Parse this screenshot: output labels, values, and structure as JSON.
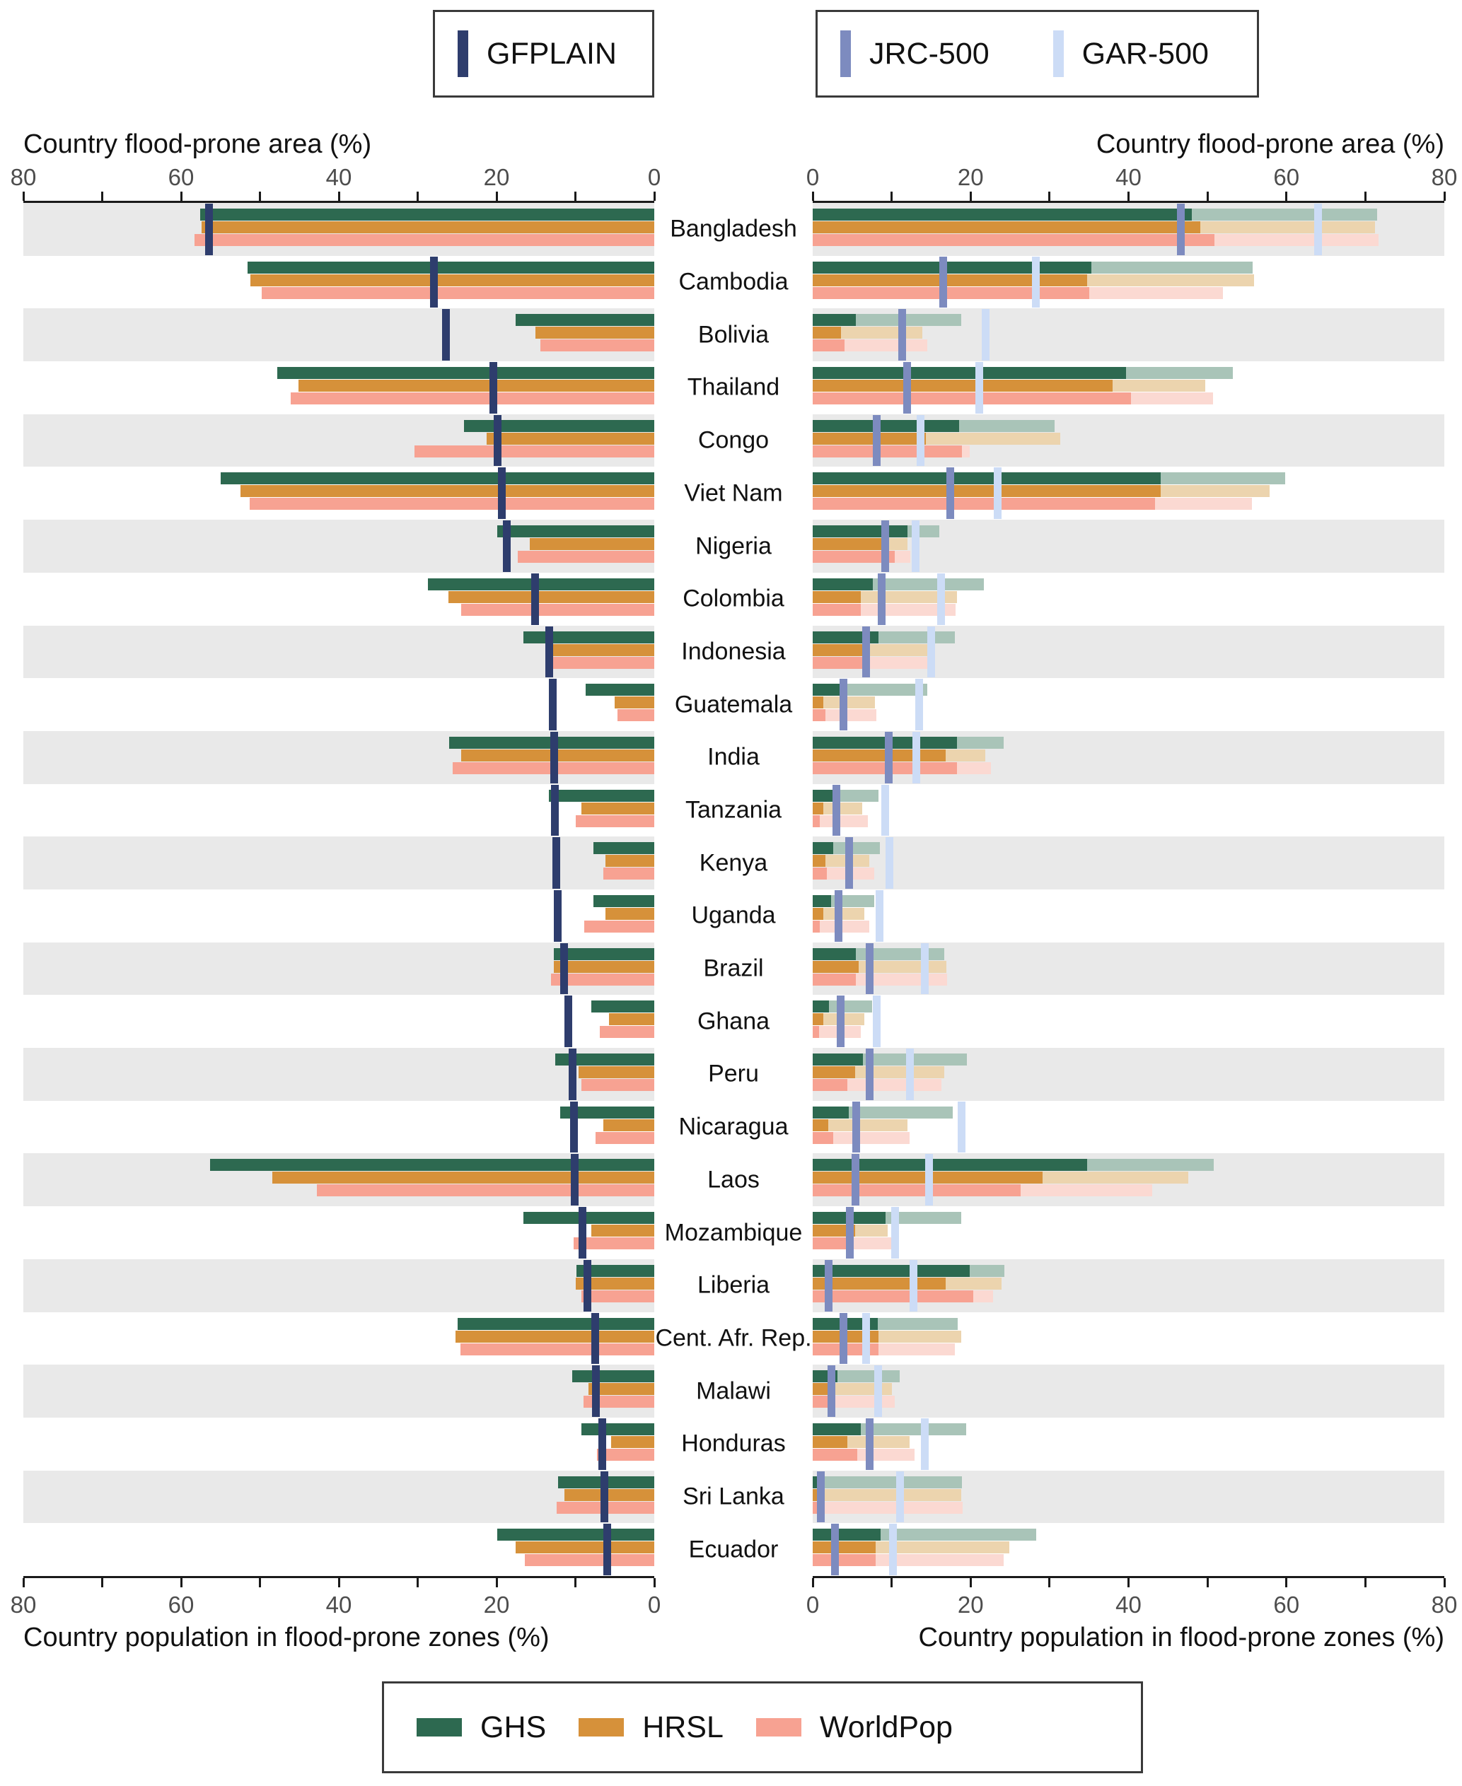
{
  "legend_top": {
    "gfplain_label": "GFPLAIN",
    "jrc_label": "JRC-500",
    "gar_label": "GAR-500"
  },
  "legend_bottom": {
    "ghs_label": "GHS",
    "hrsl_label": "HRSL",
    "worldpop_label": "WorldPop"
  },
  "axes": {
    "top_title_left": "Country flood-prone area (%)",
    "top_title_right": "Country flood-prone area (%)",
    "bottom_title_left": "Country population in flood-prone zones (%)",
    "bottom_title_right": "Country population in flood-prone zones (%)",
    "min": 0,
    "max": 80,
    "major_step": 20,
    "minor_step": 10,
    "left_tick_labels": [
      "80",
      "60",
      "40",
      "20",
      "0"
    ],
    "right_tick_labels": [
      "0",
      "20",
      "40",
      "60",
      "80"
    ]
  },
  "colors": {
    "gfplain": "#2e3d6d",
    "jrc500": "#7d8bbf",
    "gar500": "#ccdcf6",
    "ghs": "#2d6950",
    "ghs_faded": "#a9c4b8",
    "hrsl": "#d6913a",
    "hrsl_faded": "#ecd4ae",
    "worldpop": "#f7a292",
    "worldpop_faded": "#fbd9d2",
    "stripe": "#e9e9e9",
    "axis_text": "#4d4d4d"
  },
  "chart_data": {
    "type": "bar",
    "orientation": "horizontal-mirrored",
    "left_panel": {
      "top_axis_label": "Country flood-prone area (%)",
      "bottom_axis_label": "Country population in flood-prone zones (%)",
      "axis_range": [
        0,
        80
      ],
      "axis_reversed": true,
      "tick_marker": "GFPLAIN",
      "bar_series": [
        "GHS",
        "HRSL",
        "WorldPop"
      ],
      "note": "bars = pop_gfplain, vertical tick = gfplain_area"
    },
    "right_panel": {
      "top_axis_label": "Country flood-prone area (%)",
      "bottom_axis_label": "Country population in flood-prone zones (%)",
      "axis_range": [
        0,
        80
      ],
      "axis_reversed": false,
      "tick_markers": [
        "JRC-500",
        "GAR-500"
      ],
      "bar_series": [
        "GHS",
        "HRSL",
        "WorldPop"
      ],
      "note": "solid bars = pop_jrc, faded extensions reach pop_gar; ticks = jrc_area and gar_area"
    },
    "rows": [
      {
        "country": "Bangladesh",
        "gfplain_area": 56.5,
        "pop_gfplain": {
          "ghs": 57.6,
          "hrsl": 57.4,
          "worldpop": 58.3
        },
        "jrc_area": 46.6,
        "gar_area": 64.0,
        "pop_jrc": {
          "ghs": 48.0,
          "hrsl": 49.1,
          "worldpop": 50.9
        },
        "pop_gar": {
          "ghs": 71.5,
          "hrsl": 71.2,
          "worldpop": 71.7
        }
      },
      {
        "country": "Cambodia",
        "gfplain_area": 27.9,
        "pop_gfplain": {
          "ghs": 51.6,
          "hrsl": 51.2,
          "worldpop": 49.8
        },
        "jrc_area": 16.5,
        "gar_area": 28.3,
        "pop_jrc": {
          "ghs": 35.3,
          "hrsl": 34.8,
          "worldpop": 35.0
        },
        "pop_gar": {
          "ghs": 55.7,
          "hrsl": 55.9,
          "worldpop": 52.0
        }
      },
      {
        "country": "Bolivia",
        "gfplain_area": 26.4,
        "pop_gfplain": {
          "ghs": 17.6,
          "hrsl": 15.1,
          "worldpop": 14.4
        },
        "jrc_area": 11.3,
        "gar_area": 21.9,
        "pop_jrc": {
          "ghs": 5.5,
          "hrsl": 3.6,
          "worldpop": 4.0
        },
        "pop_gar": {
          "ghs": 18.8,
          "hrsl": 13.9,
          "worldpop": 14.5
        }
      },
      {
        "country": "Thailand",
        "gfplain_area": 20.4,
        "pop_gfplain": {
          "ghs": 47.8,
          "hrsl": 45.1,
          "worldpop": 46.1
        },
        "jrc_area": 12.0,
        "gar_area": 21.1,
        "pop_jrc": {
          "ghs": 39.7,
          "hrsl": 38.0,
          "worldpop": 40.3
        },
        "pop_gar": {
          "ghs": 53.2,
          "hrsl": 49.7,
          "worldpop": 50.7
        }
      },
      {
        "country": "Congo",
        "gfplain_area": 19.9,
        "pop_gfplain": {
          "ghs": 24.1,
          "hrsl": 21.3,
          "worldpop": 30.4
        },
        "jrc_area": 8.1,
        "gar_area": 13.7,
        "pop_jrc": {
          "ghs": 18.5,
          "hrsl": 14.3,
          "worldpop": 18.9
        },
        "pop_gar": {
          "ghs": 30.6,
          "hrsl": 31.4,
          "worldpop": 19.9
        }
      },
      {
        "country": "Viet Nam",
        "gfplain_area": 19.3,
        "pop_gfplain": {
          "ghs": 55.0,
          "hrsl": 52.5,
          "worldpop": 51.3
        },
        "jrc_area": 17.4,
        "gar_area": 23.4,
        "pop_jrc": {
          "ghs": 44.1,
          "hrsl": 44.1,
          "worldpop": 43.4
        },
        "pop_gar": {
          "ghs": 59.8,
          "hrsl": 57.9,
          "worldpop": 55.6
        }
      },
      {
        "country": "Nigeria",
        "gfplain_area": 18.7,
        "pop_gfplain": {
          "ghs": 19.9,
          "hrsl": 15.8,
          "worldpop": 17.3
        },
        "jrc_area": 9.2,
        "gar_area": 13.0,
        "pop_jrc": {
          "ghs": 12.0,
          "hrsl": 9.0,
          "worldpop": 10.4
        },
        "pop_gar": {
          "ghs": 16.0,
          "hrsl": 12.0,
          "worldpop": 12.4
        }
      },
      {
        "country": "Colombia",
        "gfplain_area": 15.1,
        "pop_gfplain": {
          "ghs": 28.7,
          "hrsl": 26.1,
          "worldpop": 24.5
        },
        "jrc_area": 8.7,
        "gar_area": 16.3,
        "pop_jrc": {
          "ghs": 7.6,
          "hrsl": 6.1,
          "worldpop": 6.1
        },
        "pop_gar": {
          "ghs": 21.7,
          "hrsl": 18.3,
          "worldpop": 18.1
        }
      },
      {
        "country": "Indonesia",
        "gfplain_area": 13.3,
        "pop_gfplain": {
          "ghs": 16.6,
          "hrsl": 13.1,
          "worldpop": 12.9
        },
        "jrc_area": 6.8,
        "gar_area": 15.0,
        "pop_jrc": {
          "ghs": 8.3,
          "hrsl": 7.3,
          "worldpop": 7.3
        },
        "pop_gar": {
          "ghs": 18.0,
          "hrsl": 14.7,
          "worldpop": 14.7
        }
      },
      {
        "country": "Guatemala",
        "gfplain_area": 12.9,
        "pop_gfplain": {
          "ghs": 8.7,
          "hrsl": 5.0,
          "worldpop": 4.7
        },
        "jrc_area": 3.9,
        "gar_area": 13.5,
        "pop_jrc": {
          "ghs": 4.0,
          "hrsl": 1.3,
          "worldpop": 1.6
        },
        "pop_gar": {
          "ghs": 14.5,
          "hrsl": 7.9,
          "worldpop": 8.1
        }
      },
      {
        "country": "India",
        "gfplain_area": 12.7,
        "pop_gfplain": {
          "ghs": 26.0,
          "hrsl": 24.5,
          "worldpop": 25.6
        },
        "jrc_area": 9.6,
        "gar_area": 13.1,
        "pop_jrc": {
          "ghs": 18.3,
          "hrsl": 16.8,
          "worldpop": 18.3
        },
        "pop_gar": {
          "ghs": 24.2,
          "hrsl": 21.9,
          "worldpop": 22.6
        }
      },
      {
        "country": "Tanzania",
        "gfplain_area": 12.6,
        "pop_gfplain": {
          "ghs": 13.4,
          "hrsl": 9.2,
          "worldpop": 10.0
        },
        "jrc_area": 3.0,
        "gar_area": 9.2,
        "pop_jrc": {
          "ghs": 3.3,
          "hrsl": 1.3,
          "worldpop": 0.9
        },
        "pop_gar": {
          "ghs": 8.3,
          "hrsl": 6.3,
          "worldpop": 7.0
        }
      },
      {
        "country": "Kenya",
        "gfplain_area": 12.4,
        "pop_gfplain": {
          "ghs": 7.7,
          "hrsl": 6.2,
          "worldpop": 6.5
        },
        "jrc_area": 4.6,
        "gar_area": 9.7,
        "pop_jrc": {
          "ghs": 2.6,
          "hrsl": 1.6,
          "worldpop": 1.8
        },
        "pop_gar": {
          "ghs": 8.5,
          "hrsl": 7.2,
          "worldpop": 7.8
        }
      },
      {
        "country": "Uganda",
        "gfplain_area": 12.2,
        "pop_gfplain": {
          "ghs": 7.7,
          "hrsl": 6.2,
          "worldpop": 8.9
        },
        "jrc_area": 3.3,
        "gar_area": 8.5,
        "pop_jrc": {
          "ghs": 2.3,
          "hrsl": 1.3,
          "worldpop": 0.9
        },
        "pop_gar": {
          "ghs": 7.8,
          "hrsl": 6.5,
          "worldpop": 7.2
        }
      },
      {
        "country": "Brazil",
        "gfplain_area": 11.4,
        "pop_gfplain": {
          "ghs": 12.7,
          "hrsl": 12.7,
          "worldpop": 13.1
        },
        "jrc_area": 7.2,
        "gar_area": 14.2,
        "pop_jrc": {
          "ghs": 5.5,
          "hrsl": 5.8,
          "worldpop": 5.5
        },
        "pop_gar": {
          "ghs": 16.7,
          "hrsl": 16.9,
          "worldpop": 17.0
        }
      },
      {
        "country": "Ghana",
        "gfplain_area": 10.9,
        "pop_gfplain": {
          "ghs": 8.0,
          "hrsl": 5.7,
          "worldpop": 6.9
        },
        "jrc_area": 3.5,
        "gar_area": 8.1,
        "pop_jrc": {
          "ghs": 2.1,
          "hrsl": 1.3,
          "worldpop": 0.8
        },
        "pop_gar": {
          "ghs": 7.5,
          "hrsl": 6.5,
          "worldpop": 6.1
        }
      },
      {
        "country": "Peru",
        "gfplain_area": 10.4,
        "pop_gfplain": {
          "ghs": 12.6,
          "hrsl": 9.6,
          "worldpop": 9.2
        },
        "jrc_area": 7.2,
        "gar_area": 12.3,
        "pop_jrc": {
          "ghs": 6.4,
          "hrsl": 5.4,
          "worldpop": 4.4
        },
        "pop_gar": {
          "ghs": 19.5,
          "hrsl": 16.7,
          "worldpop": 16.3
        }
      },
      {
        "country": "Nicaragua",
        "gfplain_area": 10.2,
        "pop_gfplain": {
          "ghs": 11.9,
          "hrsl": 6.5,
          "worldpop": 7.4
        },
        "jrc_area": 5.5,
        "gar_area": 18.9,
        "pop_jrc": {
          "ghs": 4.6,
          "hrsl": 2.0,
          "worldpop": 2.6
        },
        "pop_gar": {
          "ghs": 17.7,
          "hrsl": 12.0,
          "worldpop": 12.3
        }
      },
      {
        "country": "Laos",
        "gfplain_area": 10.1,
        "pop_gfplain": {
          "ghs": 56.3,
          "hrsl": 48.4,
          "worldpop": 42.8
        },
        "jrc_area": 5.4,
        "gar_area": 14.7,
        "pop_jrc": {
          "ghs": 34.8,
          "hrsl": 29.1,
          "worldpop": 26.3
        },
        "pop_gar": {
          "ghs": 50.8,
          "hrsl": 47.6,
          "worldpop": 43.0
        }
      },
      {
        "country": "Mozambique",
        "gfplain_area": 9.1,
        "pop_gfplain": {
          "ghs": 16.6,
          "hrsl": 8.0,
          "worldpop": 10.2
        },
        "jrc_area": 4.7,
        "gar_area": 10.4,
        "pop_jrc": {
          "ghs": 9.2,
          "hrsl": 5.4,
          "worldpop": 5.0
        },
        "pop_gar": {
          "ghs": 18.8,
          "hrsl": 9.5,
          "worldpop": 10.8
        }
      },
      {
        "country": "Liberia",
        "gfplain_area": 8.5,
        "pop_gfplain": {
          "ghs": 9.9,
          "hrsl": 10.0,
          "worldpop": 9.2
        },
        "jrc_area": 2.0,
        "gar_area": 12.8,
        "pop_jrc": {
          "ghs": 19.9,
          "hrsl": 16.8,
          "worldpop": 20.3
        },
        "pop_gar": {
          "ghs": 24.3,
          "hrsl": 23.9,
          "worldpop": 22.8
        }
      },
      {
        "country": "Cent. Afr. Rep.",
        "gfplain_area": 7.5,
        "pop_gfplain": {
          "ghs": 24.9,
          "hrsl": 25.2,
          "worldpop": 24.6
        },
        "jrc_area": 3.9,
        "gar_area": 6.8,
        "pop_jrc": {
          "ghs": 8.2,
          "hrsl": 8.3,
          "worldpop": 8.3
        },
        "pop_gar": {
          "ghs": 18.4,
          "hrsl": 18.8,
          "worldpop": 18.0
        }
      },
      {
        "country": "Malawi",
        "gfplain_area": 7.4,
        "pop_gfplain": {
          "ghs": 10.4,
          "hrsl": 8.3,
          "worldpop": 9.0
        },
        "jrc_area": 2.4,
        "gar_area": 8.3,
        "pop_jrc": {
          "ghs": 3.1,
          "hrsl": 1.9,
          "worldpop": 2.1
        },
        "pop_gar": {
          "ghs": 11.0,
          "hrsl": 10.0,
          "worldpop": 10.4
        }
      },
      {
        "country": "Honduras",
        "gfplain_area": 6.6,
        "pop_gfplain": {
          "ghs": 9.2,
          "hrsl": 5.5,
          "worldpop": 7.3
        },
        "jrc_area": 7.2,
        "gar_area": 14.2,
        "pop_jrc": {
          "ghs": 6.1,
          "hrsl": 4.4,
          "worldpop": 5.6
        },
        "pop_gar": {
          "ghs": 19.4,
          "hrsl": 12.3,
          "worldpop": 12.9
        }
      },
      {
        "country": "Sri Lanka",
        "gfplain_area": 6.3,
        "pop_gfplain": {
          "ghs": 12.2,
          "hrsl": 11.4,
          "worldpop": 12.4
        },
        "jrc_area": 1.0,
        "gar_area": 11.1,
        "pop_jrc": {
          "ghs": 0.6,
          "hrsl": 0.5,
          "worldpop": 0.7
        },
        "pop_gar": {
          "ghs": 18.9,
          "hrsl": 18.8,
          "worldpop": 19.0
        }
      },
      {
        "country": "Ecuador",
        "gfplain_area": 6.0,
        "pop_gfplain": {
          "ghs": 19.9,
          "hrsl": 17.6,
          "worldpop": 16.4
        },
        "jrc_area": 2.8,
        "gar_area": 10.2,
        "pop_jrc": {
          "ghs": 8.6,
          "hrsl": 8.0,
          "worldpop": 8.0
        },
        "pop_gar": {
          "ghs": 28.3,
          "hrsl": 24.9,
          "worldpop": 24.2
        }
      }
    ]
  }
}
